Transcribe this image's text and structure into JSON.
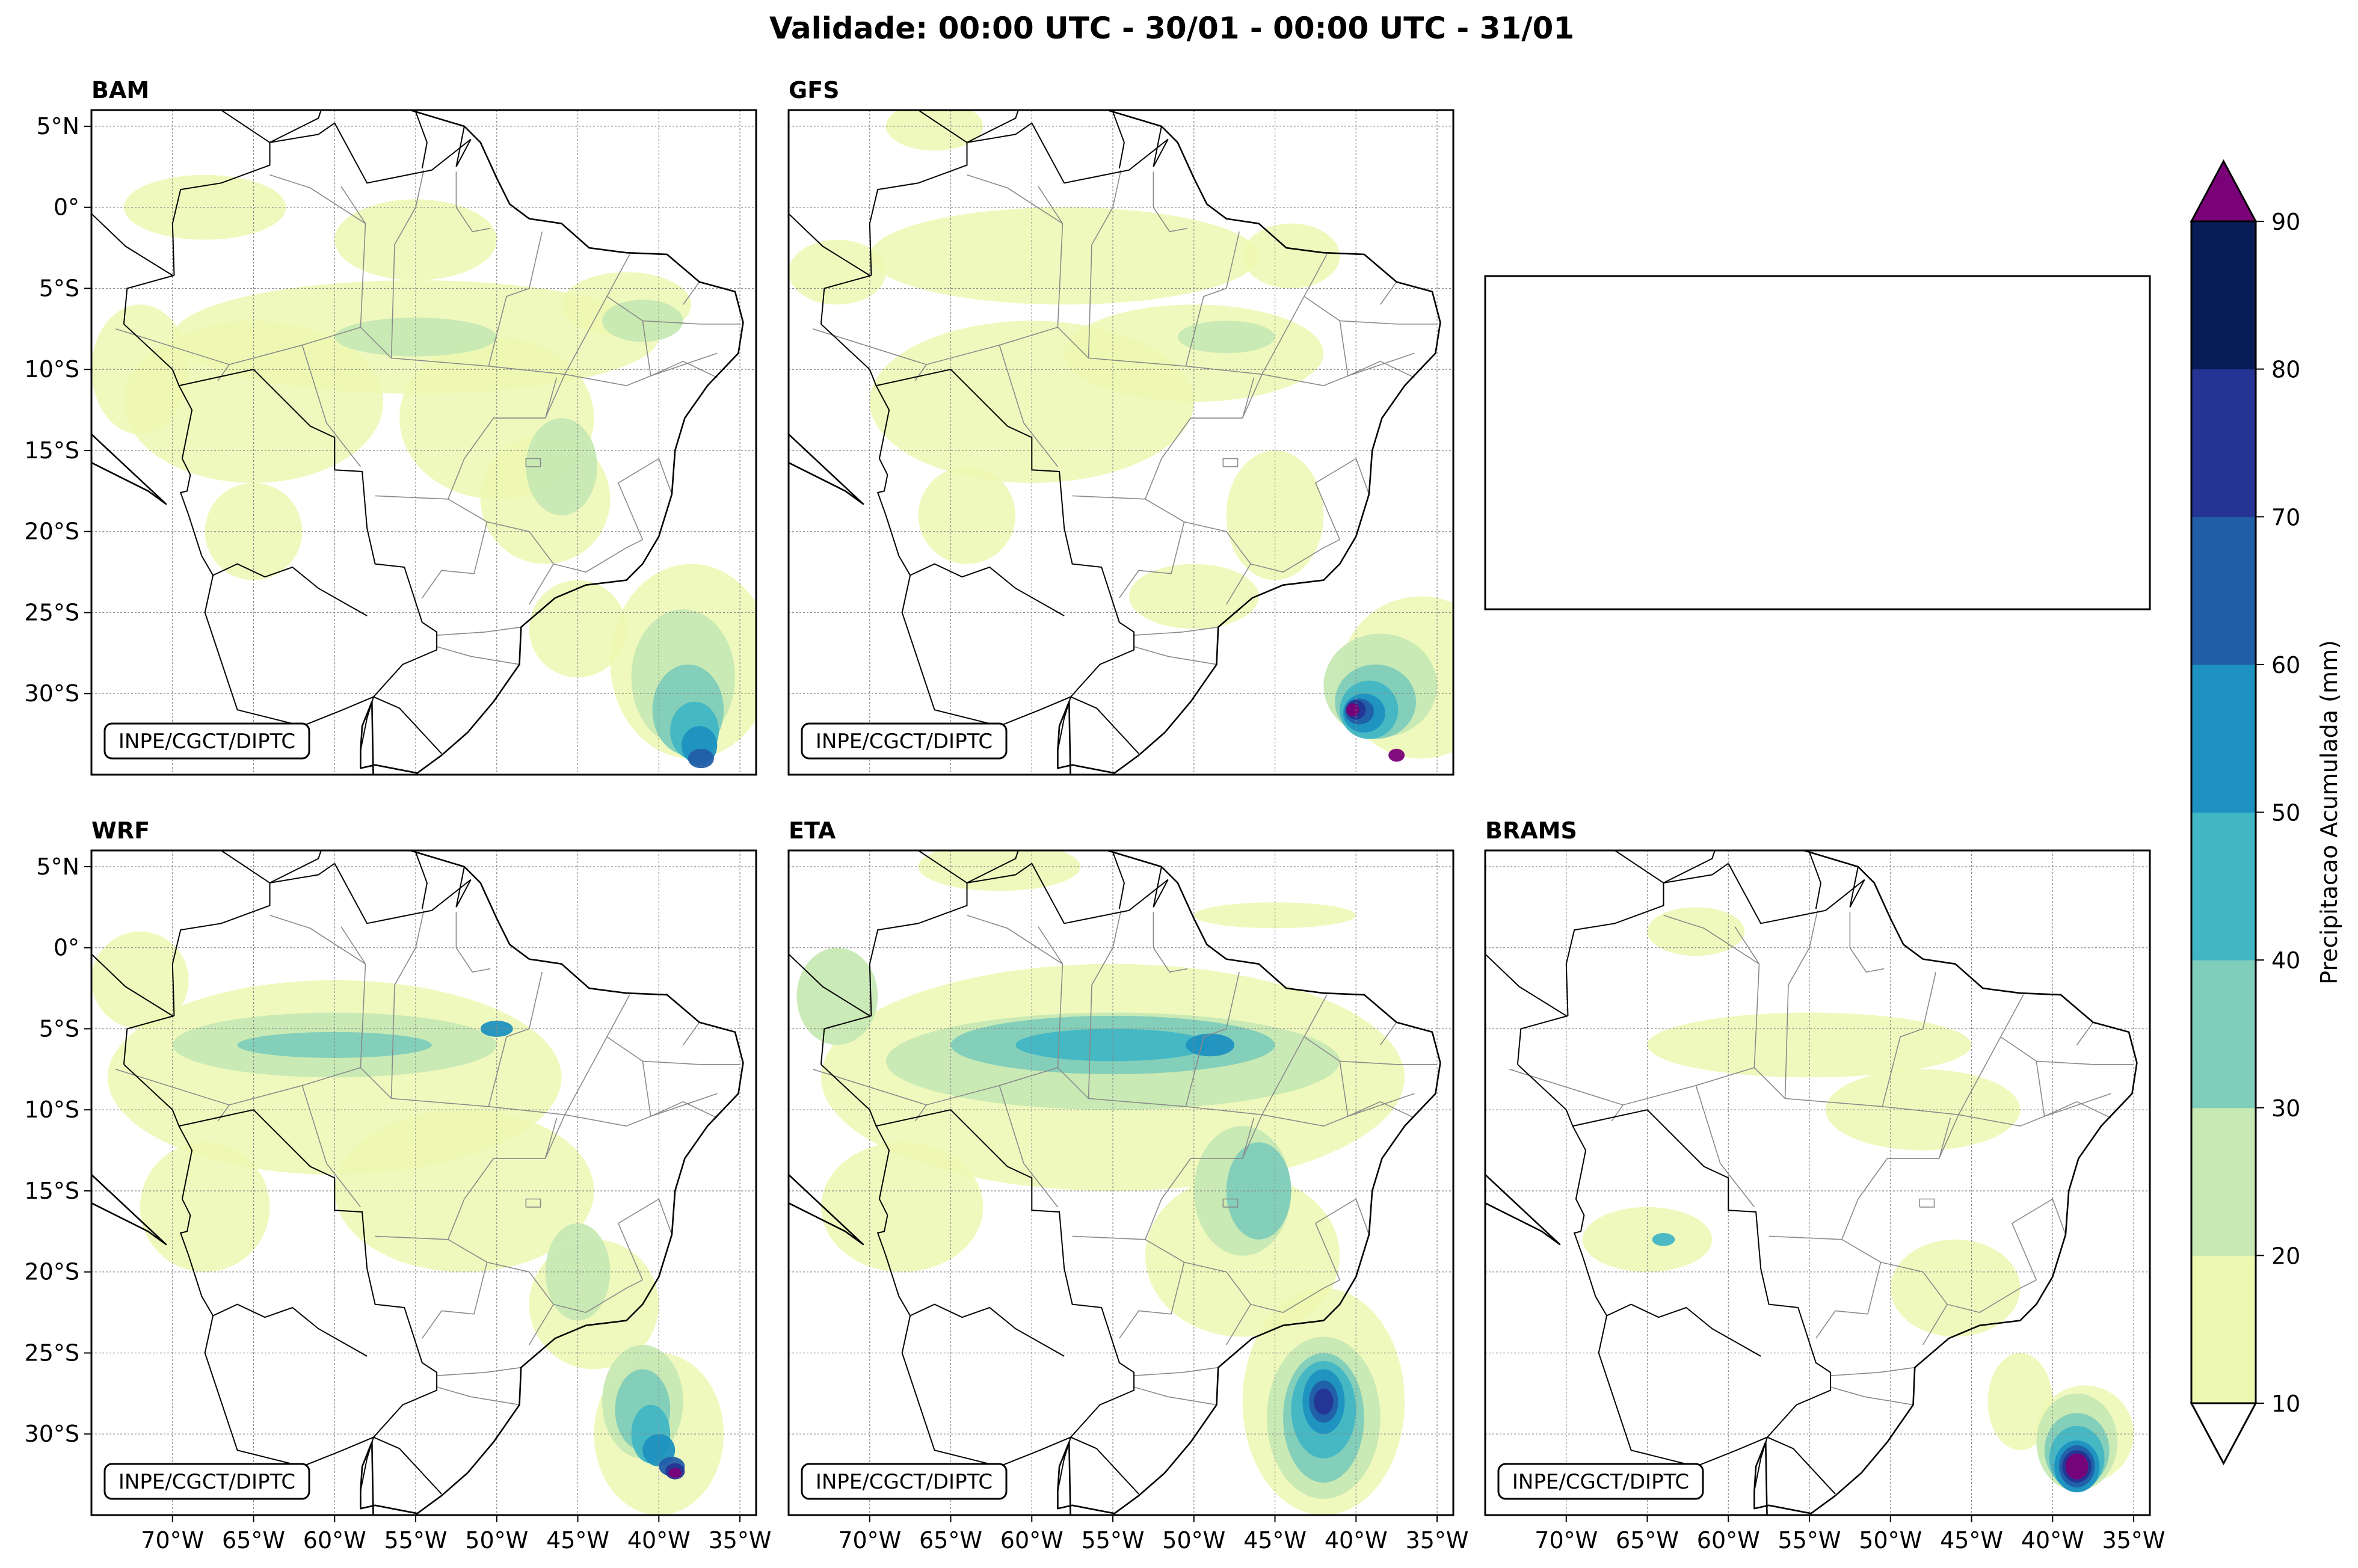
{
  "title": "Validade: 00:00 UTC - 30/01 - 00:00 UTC - 31/01",
  "credit": "INPE/CGCT/DIPTC",
  "panels": [
    {
      "id": "bam",
      "label": "BAM",
      "show_credit": true
    },
    {
      "id": "gfs",
      "label": "GFS",
      "show_credit": true
    },
    {
      "id": "empty",
      "label": "",
      "show_credit": false
    },
    {
      "id": "wrf",
      "label": "WRF",
      "show_credit": true
    },
    {
      "id": "eta",
      "label": "ETA",
      "show_credit": true
    },
    {
      "id": "brams",
      "label": "BRAMS",
      "show_credit": true
    }
  ],
  "map_extent": {
    "lon": [
      -75,
      -34
    ],
    "lat": [
      -35,
      6
    ]
  },
  "lat_ticks": [
    {
      "value": 5,
      "label": "5°N"
    },
    {
      "value": 0,
      "label": "0°"
    },
    {
      "value": -5,
      "label": "5°S"
    },
    {
      "value": -10,
      "label": "10°S"
    },
    {
      "value": -15,
      "label": "15°S"
    },
    {
      "value": -20,
      "label": "20°S"
    },
    {
      "value": -25,
      "label": "25°S"
    },
    {
      "value": -30,
      "label": "30°S"
    }
  ],
  "lon_ticks": [
    {
      "value": -70,
      "label": "70°W"
    },
    {
      "value": -65,
      "label": "65°W"
    },
    {
      "value": -60,
      "label": "60°W"
    },
    {
      "value": -55,
      "label": "55°W"
    },
    {
      "value": -50,
      "label": "50°W"
    },
    {
      "value": -45,
      "label": "45°W"
    },
    {
      "value": -40,
      "label": "40°W"
    },
    {
      "value": -35,
      "label": "35°W"
    }
  ],
  "colorbar": {
    "label": "Precipitacao Acumulada (mm)",
    "levels": [
      10,
      20,
      30,
      40,
      50,
      60,
      70,
      80,
      90
    ],
    "colors": [
      "#edf8b1",
      "#c7e9b4",
      "#7fcdbb",
      "#41b6c4",
      "#1d91c0",
      "#225ea8",
      "#253494",
      "#081d58"
    ],
    "over_color": "#7a0177",
    "under_color": "#ffffff"
  }
}
